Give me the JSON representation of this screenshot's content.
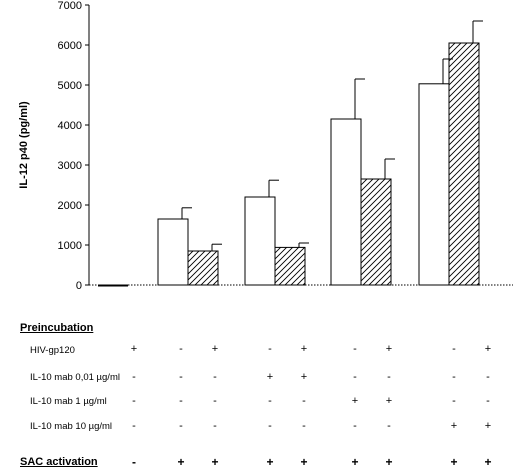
{
  "chart_data": {
    "type": "bar",
    "ylabel": "IL-12 p40 (pg/ml)",
    "ylim": [
      0,
      7000
    ],
    "yticks": [
      0,
      1000,
      2000,
      3000,
      4000,
      5000,
      6000,
      7000
    ],
    "grid": false,
    "series": [
      {
        "fill": "open",
        "values": [
          -30,
          1650,
          2200,
          4150,
          5030
        ],
        "errors": [
          0,
          280,
          420,
          1000,
          620
        ]
      },
      {
        "fill": "hatched",
        "values": [
          850,
          940,
          2650,
          6050
        ],
        "errors": [
          170,
          110,
          500,
          550
        ]
      }
    ]
  },
  "table": {
    "preincubation_label": "Preincubation",
    "rows": [
      {
        "label": "HIV-gp120",
        "signs": [
          "+",
          "-",
          "+",
          "-",
          "+",
          "-",
          "+",
          "-",
          "+"
        ]
      },
      {
        "label": "IL-10 mab 0,01  µg/ml",
        "signs": [
          "-",
          "-",
          "-",
          "+",
          "+",
          "-",
          "-",
          "-",
          "-"
        ]
      },
      {
        "label": "IL-10 mab 1 µg/ml",
        "signs": [
          "-",
          "-",
          "-",
          "-",
          "-",
          "+",
          "+",
          "-",
          "-"
        ]
      },
      {
        "label": "IL-10 mab 10  µg/ml",
        "signs": [
          "-",
          "-",
          "-",
          "-",
          "-",
          "-",
          "-",
          "+",
          "+"
        ]
      }
    ],
    "sac_label": "SAC activation",
    "sac_signs": [
      "-",
      "+",
      "+",
      "+",
      "+",
      "+",
      "+",
      "+",
      "+"
    ]
  }
}
